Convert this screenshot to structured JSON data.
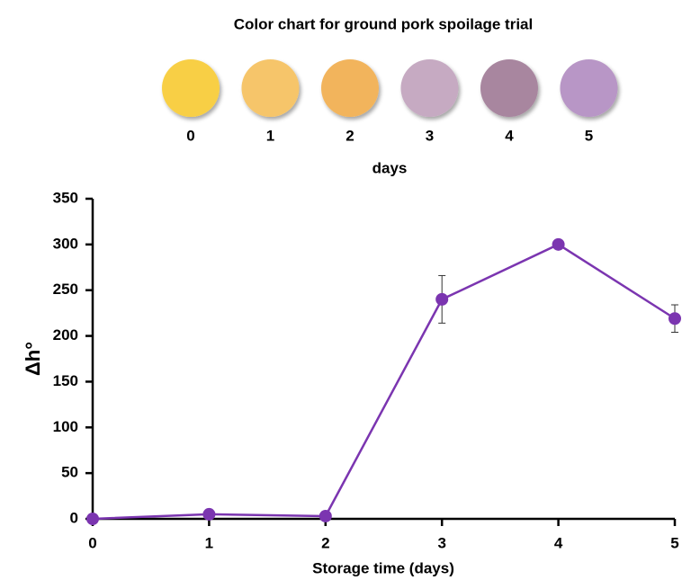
{
  "color_chart": {
    "title": "Color chart for ground pork spoilage trial",
    "labels": [
      "0",
      "1",
      "2",
      "3",
      "4",
      "5"
    ],
    "colors": [
      "#f8cf45",
      "#f6c56b",
      "#f2b45c",
      "#c6aac2",
      "#a8869f",
      "#b896c6"
    ],
    "axis_label": "days"
  },
  "chart_data": {
    "type": "line",
    "x_label": "Storage time (days)",
    "y_label": "Δh°",
    "x": [
      0,
      1,
      2,
      3,
      4,
      5
    ],
    "series": [
      {
        "color": "#7b35b0",
        "values": [
          0,
          5,
          3,
          240,
          300,
          219
        ],
        "errors": [
          null,
          null,
          null,
          26,
          null,
          15
        ]
      }
    ],
    "xlim": [
      0,
      5
    ],
    "xticks": [
      0,
      1,
      2,
      3,
      4,
      5
    ],
    "ylim": [
      0,
      350
    ],
    "yticks": [
      0,
      50,
      100,
      150,
      200,
      250,
      300,
      350
    ],
    "grid": false
  }
}
